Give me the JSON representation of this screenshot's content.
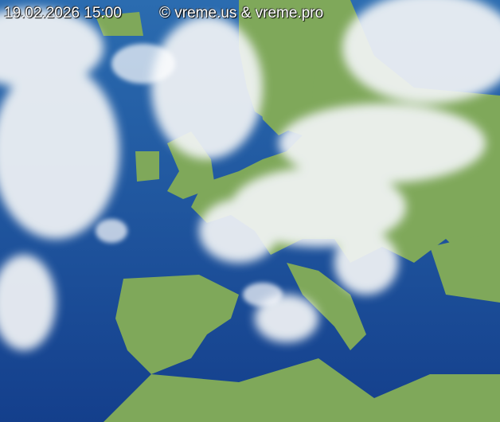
{
  "timestamp": "19.02.2026 15:00",
  "copyright": "© vreme.us & vreme.pro",
  "colors": {
    "sea": "#1f5fa5",
    "land": "#7fa85a",
    "cloud": "#f2f4f6"
  }
}
